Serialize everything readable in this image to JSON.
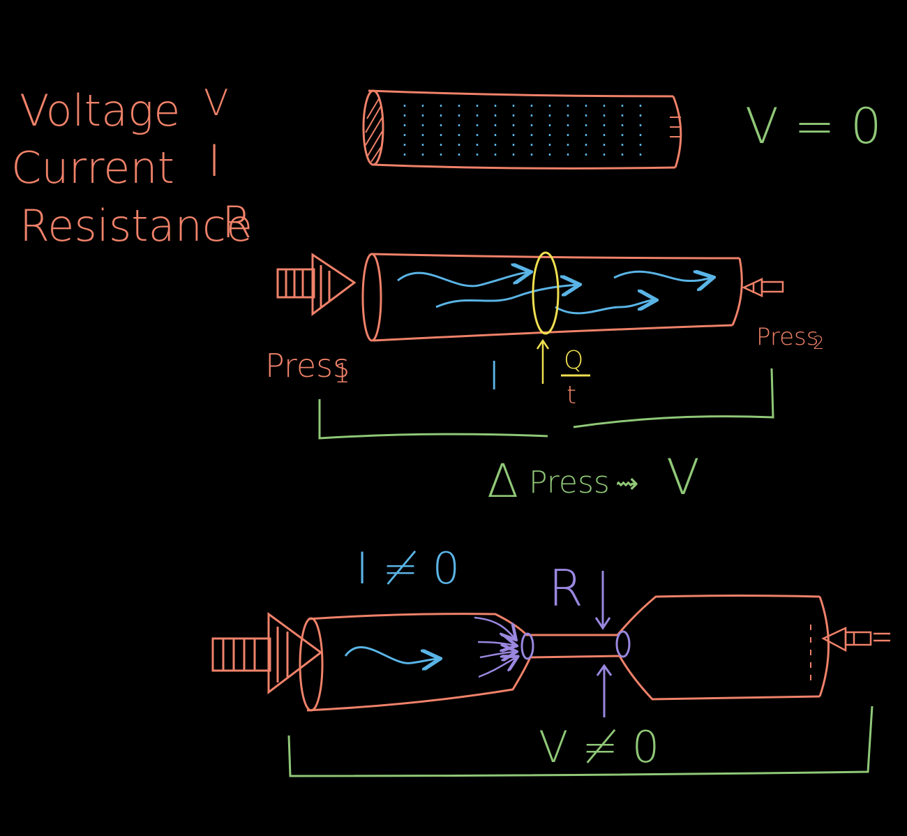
{
  "legend": {
    "voltage_label": "Voltage",
    "voltage_symbol": "V",
    "current_label": "Current",
    "current_symbol": "I",
    "resistance_label": "Resistance",
    "resistance_symbol": "R"
  },
  "pipe1": {
    "voltage_eq": "V = 0"
  },
  "pipe2": {
    "press1_label": "Press",
    "press1_sub": "1",
    "press2_label": "Press",
    "press2_sub": "2",
    "current_symbol": "I",
    "fraction_num": "Q",
    "fraction_den": "t",
    "delta": "Δ",
    "delta_label": "Press",
    "maps_to": "⇝",
    "voltage_symbol": "V"
  },
  "pipe3": {
    "current_ne": "I ≠ 0",
    "resistance_symbol": "R",
    "voltage_ne": "V ≠ 0"
  },
  "colors": {
    "background": "#000000",
    "pipe": "#f0826a",
    "flow": "#5ab4e6",
    "cross_section": "#f0e050",
    "bracket": "#90c878",
    "resistance": "#9a88e0"
  }
}
